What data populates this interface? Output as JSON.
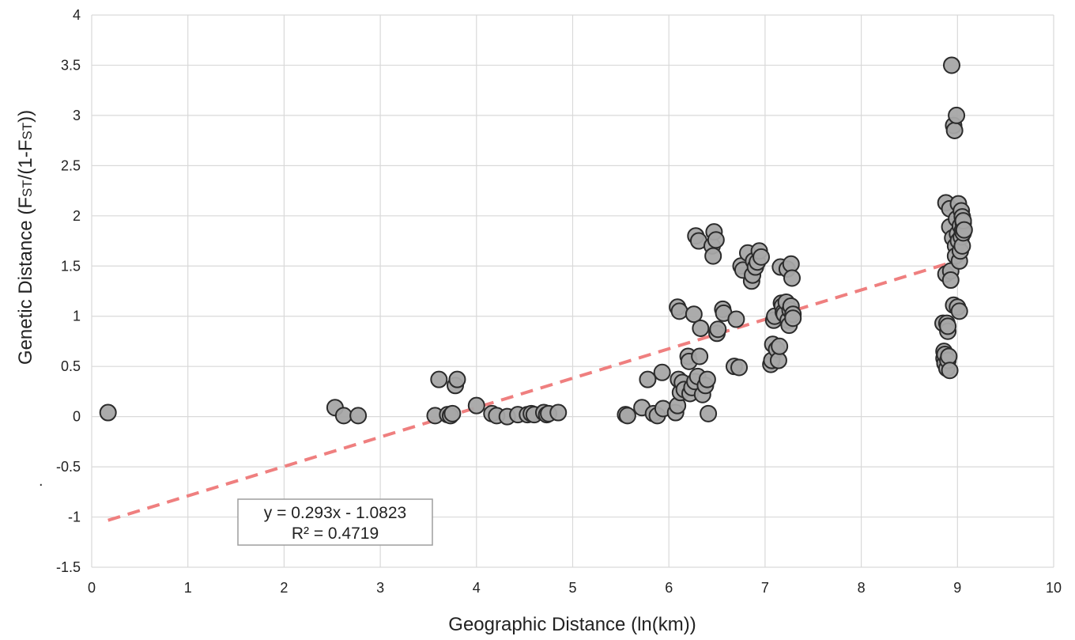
{
  "chart_data": {
    "type": "scatter",
    "xlabel": "Geographic Distance (ln(km))",
    "ylabel": {
      "pre": "Genetic Distance (F",
      "sub1": "ST",
      "mid": "/(1-F",
      "sub2": "ST",
      "post": "))"
    },
    "xlim": [
      0,
      10
    ],
    "ylim": [
      -1.5,
      4
    ],
    "x_ticks": [
      "0",
      "1",
      "2",
      "3",
      "4",
      "5",
      "6",
      "7",
      "8",
      "9",
      "10"
    ],
    "y_ticks": [
      "-1.5",
      "-1",
      "-0.5",
      "0",
      "0.5",
      "1",
      "1.5",
      "2",
      "2.5",
      "3",
      "3.5",
      "4"
    ],
    "grid": true,
    "stray_mark": ".",
    "trendline": {
      "slope": 0.293,
      "intercept": -1.0823,
      "x_range": [
        0.17,
        8.92
      ],
      "equation": "y = 0.293x - 1.0823",
      "r2": "R² = 0.4719",
      "color": "#ef7f7f"
    },
    "marker": {
      "fill": "#a6a6a6",
      "stroke": "#2b2b2b"
    },
    "points": [
      [
        0.17,
        0.04
      ],
      [
        2.53,
        0.09
      ],
      [
        2.62,
        0.01
      ],
      [
        2.77,
        0.01
      ],
      [
        3.57,
        0.01
      ],
      [
        3.61,
        0.37
      ],
      [
        3.7,
        0.02
      ],
      [
        3.73,
        0.01
      ],
      [
        3.75,
        0.03
      ],
      [
        3.78,
        0.31
      ],
      [
        3.8,
        0.37
      ],
      [
        4.0,
        0.11
      ],
      [
        4.16,
        0.03
      ],
      [
        4.21,
        0.01
      ],
      [
        4.32,
        0.0
      ],
      [
        4.43,
        0.02
      ],
      [
        4.53,
        0.02
      ],
      [
        4.57,
        0.03
      ],
      [
        4.6,
        0.02
      ],
      [
        4.7,
        0.04
      ],
      [
        4.73,
        0.02
      ],
      [
        4.75,
        0.03
      ],
      [
        4.85,
        0.04
      ],
      [
        5.55,
        0.02
      ],
      [
        5.57,
        0.01
      ],
      [
        5.72,
        0.09
      ],
      [
        5.78,
        0.37
      ],
      [
        5.84,
        0.03
      ],
      [
        5.88,
        0.01
      ],
      [
        5.93,
        0.44
      ],
      [
        5.94,
        0.08
      ],
      [
        6.07,
        0.04
      ],
      [
        6.09,
        0.11
      ],
      [
        6.09,
        1.09
      ],
      [
        6.1,
        0.37
      ],
      [
        6.11,
        1.05
      ],
      [
        6.12,
        0.24
      ],
      [
        6.14,
        0.34
      ],
      [
        6.16,
        0.27
      ],
      [
        6.2,
        0.6
      ],
      [
        6.21,
        0.55
      ],
      [
        6.22,
        0.23
      ],
      [
        6.24,
        0.29
      ],
      [
        6.26,
        1.02
      ],
      [
        6.27,
        0.35
      ],
      [
        6.28,
        1.8
      ],
      [
        6.3,
        0.4
      ],
      [
        6.31,
        1.75
      ],
      [
        6.32,
        0.6
      ],
      [
        6.33,
        0.88
      ],
      [
        6.35,
        0.22
      ],
      [
        6.38,
        0.31
      ],
      [
        6.4,
        0.37
      ],
      [
        6.41,
        0.03
      ],
      [
        6.45,
        1.7
      ],
      [
        6.46,
        1.6
      ],
      [
        6.47,
        1.84
      ],
      [
        6.49,
        1.76
      ],
      [
        6.5,
        0.83
      ],
      [
        6.51,
        0.87
      ],
      [
        6.56,
        1.07
      ],
      [
        6.57,
        1.03
      ],
      [
        6.68,
        0.5
      ],
      [
        6.7,
        0.97
      ],
      [
        6.73,
        0.49
      ],
      [
        6.75,
        1.5
      ],
      [
        6.77,
        1.46
      ],
      [
        6.82,
        1.63
      ],
      [
        6.86,
        1.35
      ],
      [
        6.87,
        1.41
      ],
      [
        6.88,
        1.55
      ],
      [
        6.9,
        1.49
      ],
      [
        6.92,
        1.54
      ],
      [
        6.94,
        1.65
      ],
      [
        6.96,
        1.59
      ],
      [
        7.06,
        0.52
      ],
      [
        7.07,
        0.56
      ],
      [
        7.08,
        0.72
      ],
      [
        7.09,
        0.96
      ],
      [
        7.1,
        1.0
      ],
      [
        7.12,
        0.67
      ],
      [
        7.14,
        0.56
      ],
      [
        7.15,
        0.7
      ],
      [
        7.16,
        1.49
      ],
      [
        7.17,
        1.13
      ],
      [
        7.18,
        1.1
      ],
      [
        7.19,
        1.04
      ],
      [
        7.2,
        1.02
      ],
      [
        7.22,
        1.14
      ],
      [
        7.23,
        1.47
      ],
      [
        7.24,
        0.96
      ],
      [
        7.25,
        0.91
      ],
      [
        7.26,
        1.06
      ],
      [
        7.27,
        1.1
      ],
      [
        7.27,
        1.52
      ],
      [
        7.28,
        1.38
      ],
      [
        7.29,
        1.02
      ],
      [
        7.29,
        0.98
      ],
      [
        8.85,
        0.93
      ],
      [
        8.86,
        0.65
      ],
      [
        8.86,
        0.58
      ],
      [
        8.87,
        0.53
      ],
      [
        8.87,
        0.62
      ],
      [
        8.88,
        1.42
      ],
      [
        8.88,
        2.13
      ],
      [
        8.89,
        0.93
      ],
      [
        8.89,
        0.48
      ],
      [
        8.9,
        0.85
      ],
      [
        8.9,
        0.9
      ],
      [
        8.9,
        0.56
      ],
      [
        8.91,
        0.6
      ],
      [
        8.92,
        0.46
      ],
      [
        8.92,
        2.07
      ],
      [
        8.92,
        1.89
      ],
      [
        8.93,
        1.45
      ],
      [
        8.93,
        1.36
      ],
      [
        8.94,
        3.5
      ],
      [
        8.95,
        1.78
      ],
      [
        8.96,
        1.11
      ],
      [
        8.96,
        2.9
      ],
      [
        8.97,
        2.85
      ],
      [
        8.98,
        1.7
      ],
      [
        8.98,
        1.6
      ],
      [
        8.99,
        1.97
      ],
      [
        8.99,
        3.0
      ],
      [
        9.0,
        1.82
      ],
      [
        9.0,
        1.09
      ],
      [
        9.01,
        1.75
      ],
      [
        9.01,
        2.12
      ],
      [
        9.02,
        1.55
      ],
      [
        9.02,
        1.05
      ],
      [
        9.03,
        1.9
      ],
      [
        9.03,
        1.65
      ],
      [
        9.04,
        2.05
      ],
      [
        9.04,
        1.79
      ],
      [
        9.05,
        1.99
      ],
      [
        9.05,
        1.85
      ],
      [
        9.05,
        1.7
      ],
      [
        9.06,
        1.93
      ],
      [
        9.06,
        1.83
      ],
      [
        9.06,
        1.95
      ],
      [
        9.07,
        1.86
      ]
    ]
  }
}
